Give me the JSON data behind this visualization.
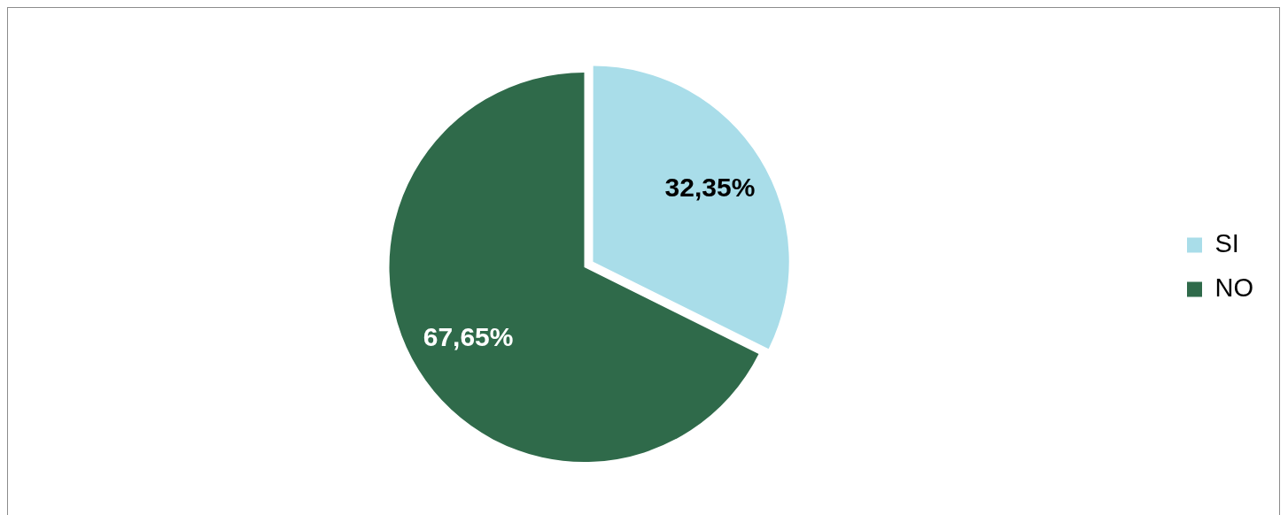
{
  "chart_data": {
    "type": "pie",
    "categories": [
      "SI",
      "NO"
    ],
    "values": [
      32.35,
      67.65
    ],
    "colors": [
      "#a9dde9",
      "#2f6a4a"
    ],
    "value_labels": [
      "32,35%",
      "67,65%"
    ],
    "legend": "right"
  }
}
